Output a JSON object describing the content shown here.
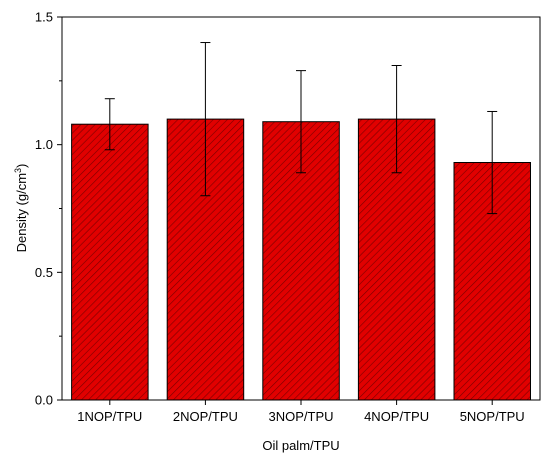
{
  "chart_data": {
    "type": "bar",
    "categories": [
      "1NOP/TPU",
      "2NOP/TPU",
      "3NOP/TPU",
      "4NOP/TPU",
      "5NOP/TPU"
    ],
    "values": [
      1.08,
      1.1,
      1.09,
      1.1,
      0.93
    ],
    "error_bars": [
      [
        0.98,
        1.18
      ],
      [
        0.8,
        1.4
      ],
      [
        0.89,
        1.29
      ],
      [
        0.89,
        1.31
      ],
      [
        0.73,
        1.13
      ]
    ],
    "xlabel": "Oil palm/TPU",
    "ylabel_main": "Density (g/cm",
    "ylabel_sup": "3",
    "ylabel_close": ")",
    "ylim": [
      0,
      1.5
    ],
    "yticks": [
      "0.0",
      "0.5",
      "1.0",
      "1.5"
    ],
    "ytick_values": [
      0,
      0.5,
      1.0,
      1.5
    ],
    "bar_color": "#e10000",
    "hatch_color": "#7a0000",
    "grid": false
  }
}
